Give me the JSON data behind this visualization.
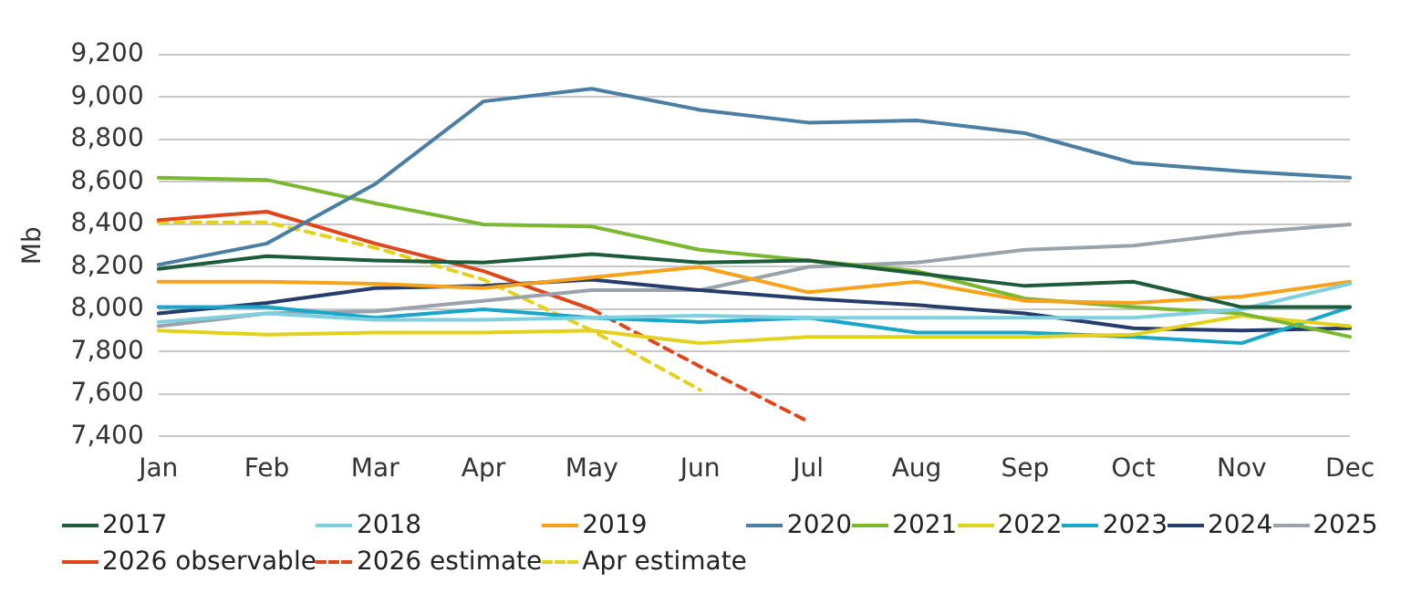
{
  "chart_data": {
    "type": "line",
    "ylabel": "Mb",
    "categories": [
      "Jan",
      "Feb",
      "Mar",
      "Apr",
      "May",
      "Jun",
      "Jul",
      "Aug",
      "Sep",
      "Oct",
      "Nov",
      "Dec"
    ],
    "ylim": [
      7400,
      9200
    ],
    "yticks": [
      {
        "value": 7400,
        "label": "7,400"
      },
      {
        "value": 7600,
        "label": "7,600"
      },
      {
        "value": 7800,
        "label": "7,800"
      },
      {
        "value": 8000,
        "label": "8,000"
      },
      {
        "value": 8200,
        "label": "8,200"
      },
      {
        "value": 8400,
        "label": "8,400"
      },
      {
        "value": 8600,
        "label": "8,600"
      },
      {
        "value": 8800,
        "label": "8,800"
      },
      {
        "value": 9000,
        "label": "9,000"
      },
      {
        "value": 9200,
        "label": "9,200"
      }
    ],
    "grid": "y",
    "legend": "bottom",
    "marker": "none",
    "series": [
      {
        "name": "2017",
        "color": "#1d5c3a",
        "values": [
          8190,
          8250,
          8230,
          8220,
          8260,
          8220,
          8230,
          8170,
          8110,
          8130,
          8010,
          8010
        ]
      },
      {
        "name": "2018",
        "color": "#7ecfe0",
        "values": [
          7940,
          7980,
          7950,
          7950,
          7960,
          7970,
          7960,
          7960,
          7960,
          7960,
          8000,
          8120
        ]
      },
      {
        "name": "2019",
        "color": "#f7a21b",
        "values": [
          8130,
          8130,
          8120,
          8100,
          8150,
          8200,
          8080,
          8130,
          8040,
          8030,
          8060,
          8130
        ]
      },
      {
        "name": "2020",
        "color": "#4a7fa3",
        "values": [
          8210,
          8310,
          8590,
          8980,
          9040,
          8940,
          8880,
          8890,
          8830,
          8690,
          8650,
          8620
        ]
      },
      {
        "name": "2021",
        "color": "#7ab830",
        "values": [
          8620,
          8610,
          8500,
          8400,
          8390,
          8280,
          8230,
          8180,
          8050,
          8010,
          7980,
          7870
        ]
      },
      {
        "name": "2022",
        "color": "#e3d21c",
        "values": [
          7900,
          7880,
          7890,
          7890,
          7900,
          7840,
          7870,
          7870,
          7870,
          7880,
          7970,
          7920
        ]
      },
      {
        "name": "2023",
        "color": "#18a7c9",
        "values": [
          8010,
          8010,
          7960,
          8000,
          7960,
          7940,
          7960,
          7890,
          7890,
          7870,
          7840,
          8010
        ]
      },
      {
        "name": "2024",
        "color": "#263c6a",
        "values": [
          7980,
          8030,
          8100,
          8110,
          8140,
          8090,
          8050,
          8020,
          7980,
          7910,
          7900,
          7910
        ]
      },
      {
        "name": "2025",
        "color": "#9aa3ab",
        "values": [
          7920,
          7980,
          7990,
          8040,
          8090,
          8090,
          8200,
          8220,
          8280,
          8300,
          8360,
          8400
        ]
      },
      {
        "name": "2026 observable",
        "color": "#e0461b",
        "values": [
          8420,
          8460,
          8310,
          8180,
          8000,
          null,
          null,
          null,
          null,
          null,
          null,
          null
        ]
      },
      {
        "name": "2026 estimate",
        "color": "#e0461b",
        "line_style": "dashed",
        "values": [
          null,
          null,
          null,
          null,
          8000,
          7730,
          7470,
          null,
          null,
          null,
          null,
          null
        ]
      },
      {
        "name": "Apr estimate",
        "color": "#e3d21c",
        "line_style": "dashed",
        "values": [
          8410,
          8410,
          8290,
          8140,
          7900,
          7620,
          null,
          null,
          null,
          null,
          null,
          null
        ]
      }
    ]
  }
}
